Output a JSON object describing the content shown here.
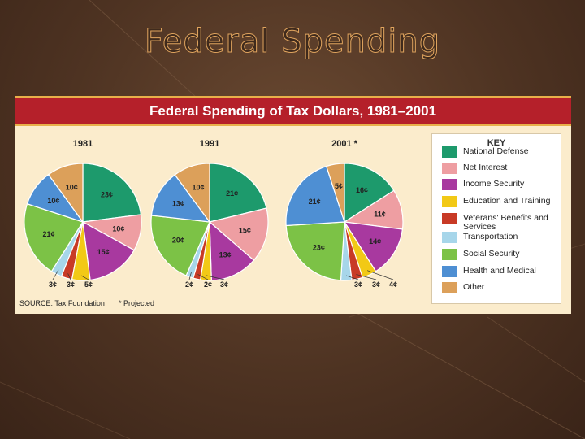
{
  "slide": {
    "title": "Federal Spending"
  },
  "chart_data": {
    "type": "pie",
    "title": "Federal Spending of Tax Dollars, 1981–2001",
    "categories": [
      "National Defense",
      "Net Interest",
      "Income Security",
      "Education and Training",
      "Veterans' Benefits and Services",
      "Transportation",
      "Social Security",
      "Health and Medical",
      "Other"
    ],
    "colors": [
      "#1d9a6c",
      "#ee9ea2",
      "#a8399f",
      "#f2c916",
      "#c83a26",
      "#a7d6ea",
      "#7cc246",
      "#4e8fd3",
      "#dca05a"
    ],
    "series": [
      {
        "name": "1981",
        "values": [
          23,
          10,
          15,
          5,
          3,
          3,
          21,
          10,
          10
        ],
        "labels": [
          "23¢",
          "10¢",
          "15¢",
          "5¢",
          "3¢",
          "3¢",
          "21¢",
          "10¢",
          "10¢"
        ]
      },
      {
        "name": "1991",
        "values": [
          21,
          15,
          13,
          3,
          2,
          2,
          20,
          13,
          10
        ],
        "labels": [
          "21¢",
          "15¢",
          "13¢",
          "3¢",
          "2¢",
          "2¢",
          "20¢",
          "13¢",
          "10¢"
        ]
      },
      {
        "name": "2001 *",
        "values": [
          16,
          11,
          14,
          4,
          3,
          3,
          23,
          21,
          5
        ],
        "labels": [
          "16¢",
          "11¢",
          "14¢",
          "4¢",
          "3¢",
          "3¢",
          "23¢",
          "21¢",
          "5¢"
        ]
      }
    ],
    "legend": {
      "title": "KEY",
      "position": "right"
    },
    "source": "SOURCE: Tax Foundation",
    "note": "* Projected"
  }
}
